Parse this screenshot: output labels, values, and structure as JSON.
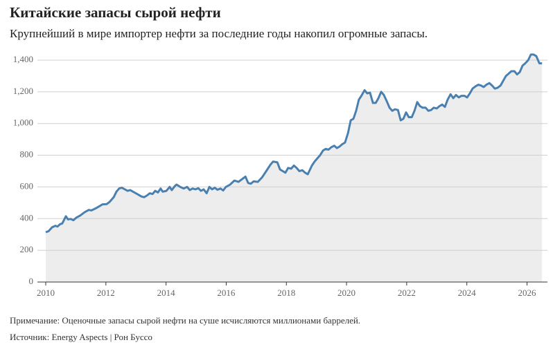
{
  "chart_data": {
    "type": "area",
    "title": "Китайские запасы сырой нефти",
    "subtitle": "Крупнейший в мире импортер нефти за последние годы накопил огромные запасы.",
    "note": "Примечание: Оценочные запасы сырой нефти на суше исчисляются миллионами баррелей.",
    "source": "Источник: Energy Aspects | Рон Буссо",
    "color": "#4a80b0",
    "area_color": "#ededed",
    "grid": true,
    "xlim": [
      2010,
      2026.68
    ],
    "xticks": [
      2010,
      2012,
      2014,
      2016,
      2018,
      2020,
      2022,
      2024,
      2026
    ],
    "ylim": [
      0,
      1450
    ],
    "yticks": [
      0,
      200,
      400,
      600,
      800,
      {
        "value": 1000,
        "label": "1,000"
      },
      {
        "value": 1200,
        "label": "1,200"
      },
      {
        "value": 1400,
        "label": "1,400"
      }
    ],
    "x": [
      2010.0,
      2010.09,
      2010.21,
      2010.32,
      2010.39,
      2010.48,
      2010.55,
      2010.67,
      2010.74,
      2010.83,
      2010.92,
      2011.01,
      2011.15,
      2011.29,
      2011.43,
      2011.52,
      2011.66,
      2011.8,
      2011.89,
      2012.03,
      2012.12,
      2012.26,
      2012.35,
      2012.44,
      2012.53,
      2012.63,
      2012.72,
      2012.81,
      2012.9,
      2013.04,
      2013.18,
      2013.27,
      2013.36,
      2013.46,
      2013.55,
      2013.64,
      2013.73,
      2013.82,
      2013.89,
      2014.01,
      2014.12,
      2014.19,
      2014.29,
      2014.35,
      2014.47,
      2014.59,
      2014.7,
      2014.79,
      2014.88,
      2014.98,
      2015.07,
      2015.16,
      2015.25,
      2015.35,
      2015.44,
      2015.53,
      2015.62,
      2015.71,
      2015.81,
      2015.9,
      2015.99,
      2016.13,
      2016.27,
      2016.41,
      2016.5,
      2016.64,
      2016.73,
      2016.82,
      2016.91,
      2017.05,
      2017.19,
      2017.33,
      2017.47,
      2017.56,
      2017.7,
      2017.79,
      2017.88,
      2017.97,
      2018.06,
      2018.16,
      2018.25,
      2018.34,
      2018.43,
      2018.53,
      2018.62,
      2018.71,
      2018.85,
      2018.94,
      2019.03,
      2019.12,
      2019.22,
      2019.31,
      2019.4,
      2019.49,
      2019.59,
      2019.68,
      2019.77,
      2019.86,
      2019.95,
      2020.05,
      2020.14,
      2020.23,
      2020.32,
      2020.41,
      2020.51,
      2020.6,
      2020.69,
      2020.78,
      2020.88,
      2020.97,
      2021.06,
      2021.15,
      2021.24,
      2021.34,
      2021.43,
      2021.52,
      2021.61,
      2021.71,
      2021.8,
      2021.89,
      2021.98,
      2022.07,
      2022.17,
      2022.26,
      2022.35,
      2022.44,
      2022.53,
      2022.63,
      2022.72,
      2022.81,
      2022.9,
      2023.0,
      2023.09,
      2023.18,
      2023.27,
      2023.36,
      2023.46,
      2023.55,
      2023.64,
      2023.73,
      2023.82,
      2023.92,
      2024.01,
      2024.1,
      2024.19,
      2024.29,
      2024.38,
      2024.47,
      2024.56,
      2024.65,
      2024.75,
      2024.84,
      2024.93,
      2025.02,
      2025.12,
      2025.21,
      2025.3,
      2025.39,
      2025.48,
      2025.58,
      2025.67,
      2025.76,
      2025.85,
      2025.94,
      2026.04,
      2026.13,
      2026.22,
      2026.31,
      2026.41,
      2026.5
    ],
    "values": [
      315,
      320,
      345,
      355,
      350,
      365,
      370,
      415,
      395,
      398,
      390,
      405,
      420,
      440,
      455,
      452,
      465,
      480,
      490,
      492,
      505,
      535,
      570,
      590,
      595,
      585,
      575,
      580,
      570,
      555,
      540,
      535,
      545,
      560,
      555,
      575,
      565,
      590,
      570,
      575,
      600,
      580,
      605,
      615,
      600,
      590,
      600,
      580,
      590,
      585,
      592,
      575,
      585,
      560,
      600,
      585,
      595,
      582,
      590,
      578,
      600,
      615,
      640,
      632,
      645,
      665,
      625,
      620,
      635,
      632,
      660,
      700,
      740,
      760,
      755,
      710,
      700,
      690,
      720,
      715,
      735,
      720,
      700,
      705,
      690,
      680,
      735,
      760,
      780,
      800,
      830,
      840,
      835,
      850,
      860,
      845,
      855,
      870,
      880,
      940,
      1020,
      1030,
      1080,
      1150,
      1180,
      1210,
      1190,
      1195,
      1130,
      1130,
      1160,
      1200,
      1180,
      1140,
      1100,
      1080,
      1090,
      1085,
      1020,
      1030,
      1070,
      1040,
      1040,
      1080,
      1135,
      1110,
      1100,
      1100,
      1080,
      1085,
      1100,
      1095,
      1110,
      1120,
      1105,
      1150,
      1185,
      1160,
      1180,
      1165,
      1175,
      1175,
      1165,
      1190,
      1220,
      1235,
      1245,
      1240,
      1230,
      1245,
      1255,
      1240,
      1220,
      1225,
      1240,
      1270,
      1300,
      1315,
      1330,
      1330,
      1310,
      1325,
      1365,
      1380,
      1400,
      1435,
      1435,
      1425,
      1380,
      1380
    ]
  }
}
